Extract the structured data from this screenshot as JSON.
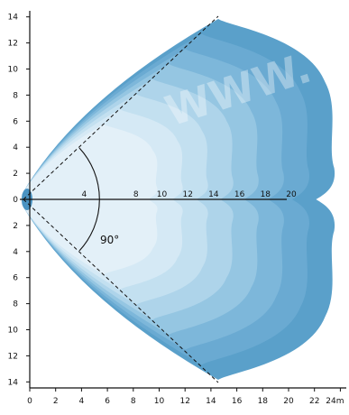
{
  "chart_data": {
    "type": "area",
    "x_axis": {
      "ticks": [
        "0",
        "2",
        "4",
        "6",
        "8",
        "10",
        "12",
        "14",
        "16",
        "18",
        "20",
        "22"
      ],
      "last_tick": "24m",
      "range": [
        0,
        24
      ]
    },
    "y_axis": {
      "ticks_upper": [
        "14",
        "12",
        "10",
        "8",
        "6",
        "4",
        "2"
      ],
      "tick_zero": "0",
      "ticks_lower": [
        "2",
        "4",
        "6",
        "8",
        "10",
        "12",
        "14"
      ],
      "range": [
        -14,
        14
      ]
    },
    "center_line_labels": [
      "4",
      "8",
      "10",
      "12",
      "14",
      "16",
      "18",
      "20"
    ],
    "beam_angle_label": "90°",
    "watermark": "WWW.",
    "bands": [
      {
        "reach": 24,
        "color": "#5aa0ca"
      },
      {
        "reach": 22,
        "color": "#6aaad2"
      },
      {
        "reach": 20,
        "color": "#7db7da"
      },
      {
        "reach": 18,
        "color": "#95c6e2"
      },
      {
        "reach": 16,
        "color": "#aed4ea"
      },
      {
        "reach": 14,
        "color": "#c3e0f0"
      },
      {
        "reach": 12,
        "color": "#d5e9f5"
      },
      {
        "reach": 10,
        "color": "#e3f0f8"
      }
    ]
  }
}
